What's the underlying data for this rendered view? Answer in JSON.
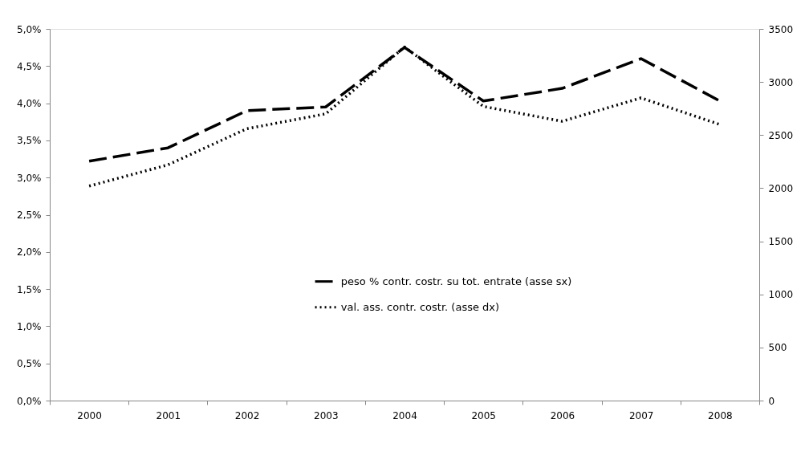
{
  "chart_data": {
    "type": "line",
    "categories": [
      "2000",
      "2001",
      "2002",
      "2003",
      "2004",
      "2005",
      "2006",
      "2007",
      "2008"
    ],
    "series": [
      {
        "name": "peso % contr. costr. su tot. entrate (asse sx)",
        "color": "#000000",
        "line_style": "dashed",
        "values": [
          3.22,
          3.4,
          3.9,
          3.95,
          4.75,
          4.03,
          4.2,
          4.6,
          4.03
        ]
      },
      {
        "name": "val. ass. contr. costr. (asse dx)",
        "color": "#000000",
        "line_style": "dotted",
        "axis": "y2",
        "values": [
          2020,
          2220,
          2560,
          2700,
          3330,
          2770,
          2630,
          2850,
          2600
        ]
      }
    ],
    "ylim": [
      0,
      5
    ],
    "yticks": [
      {
        "value": 0,
        "label": "0,0%"
      },
      {
        "value": 0.5,
        "label": "0,5%"
      },
      {
        "value": 1,
        "label": "1,0%"
      },
      {
        "value": 1.5,
        "label": "1,5%"
      },
      {
        "value": 2,
        "label": "2,0%"
      },
      {
        "value": 2.5,
        "label": "2,5%"
      },
      {
        "value": 3,
        "label": "3,0%"
      },
      {
        "value": 3.5,
        "label": "3,5%"
      },
      {
        "value": 4,
        "label": "4,0%"
      },
      {
        "value": 4.5,
        "label": "4,5%"
      },
      {
        "value": 5,
        "label": "5,0%"
      }
    ],
    "y2lim": [
      0,
      3500
    ],
    "y2ticks": [
      0,
      500,
      1000,
      1500,
      2000,
      2500,
      3000,
      3500
    ],
    "grid": false,
    "legend": "bottom"
  }
}
